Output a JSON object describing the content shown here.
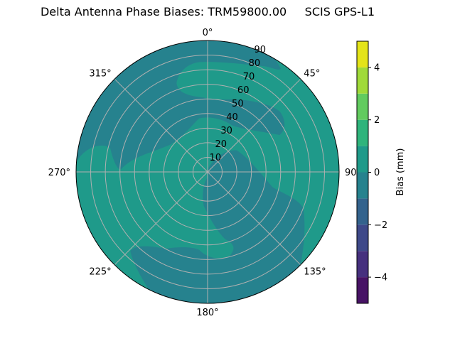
{
  "chart_data": {
    "type": "contour",
    "projection": "polar",
    "title": "Delta Antenna Phase Biases: TRM59800.00     SCIS GPS-L1",
    "theta_zero": "N",
    "theta_direction": "clockwise",
    "theta_ticks": [
      "0°",
      "45°",
      "90°",
      "135°",
      "180°",
      "225°",
      "270°",
      "315°"
    ],
    "r_ticks": [
      "10",
      "20",
      "30",
      "40",
      "50",
      "60",
      "70",
      "80",
      "90"
    ],
    "r_range": [
      0,
      90
    ],
    "grid": true,
    "levels": [
      -5,
      -4,
      -3,
      -2,
      -1,
      0,
      1,
      2,
      3,
      4,
      5
    ],
    "level_colors": [
      "#471365",
      "#46307e",
      "#3e4989",
      "#33638d",
      "#26828e",
      "#1f9a8a",
      "#2fb47c",
      "#62cb5f",
      "#a0da39",
      "#e4e419"
    ],
    "regions": [
      {
        "range": [
          0,
          1
        ],
        "description_level": "background"
      },
      {
        "range": [
          -1,
          0
        ],
        "location": "north-west outer ring, 30-50 band north-east, south-east inner to outer ring"
      }
    ],
    "colorbar": {
      "label": "Bias (mm)",
      "ticks": [
        "−4",
        "−2",
        "0",
        "2",
        "4"
      ],
      "tick_values": [
        -4,
        -2,
        0,
        2,
        4
      ],
      "range": [
        -5,
        5
      ]
    }
  }
}
